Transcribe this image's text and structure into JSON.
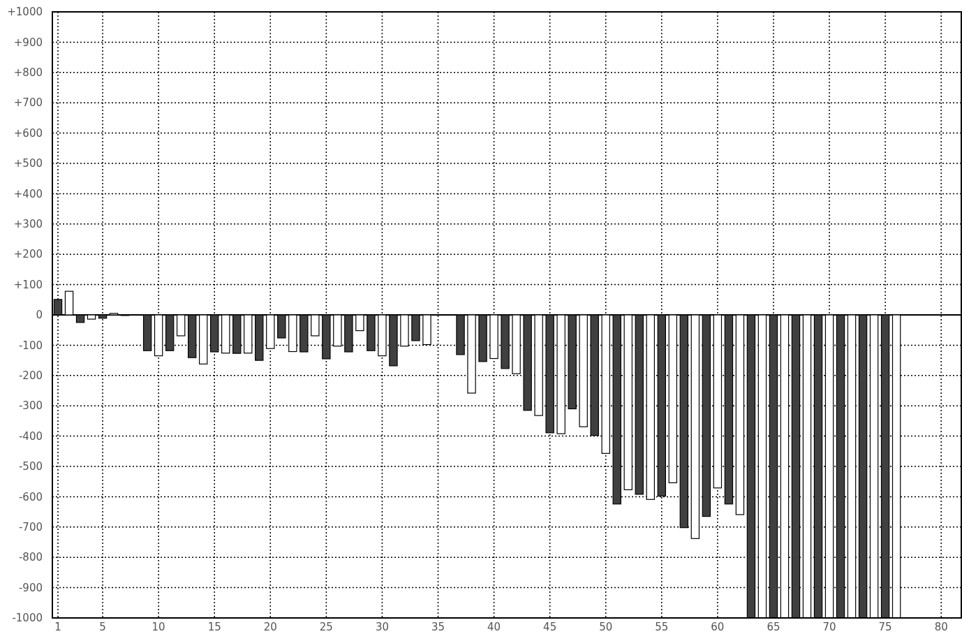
{
  "chart_data": {
    "type": "bar",
    "x": [
      1,
      2,
      3,
      4,
      5,
      6,
      7,
      9,
      10,
      11,
      12,
      13,
      14,
      15,
      16,
      17,
      18,
      19,
      20,
      21,
      22,
      23,
      24,
      25,
      26,
      27,
      28,
      29,
      30,
      31,
      32,
      33,
      34,
      37,
      38,
      39,
      40,
      41,
      42,
      43,
      44,
      45,
      46,
      47,
      48,
      49,
      50,
      51,
      52,
      53,
      54,
      55,
      56,
      57,
      58,
      59,
      60,
      61,
      62,
      63,
      64,
      65,
      66,
      67,
      68,
      69,
      70,
      71,
      72,
      73,
      74,
      75,
      76
    ],
    "values": [
      51,
      78,
      -25,
      -14,
      -11,
      5,
      -2,
      -118,
      -135,
      -118,
      -69,
      -141,
      -162,
      -122,
      -126,
      -127,
      -126,
      -150,
      -111,
      -76,
      -121,
      -122,
      -69,
      -145,
      -103,
      -122,
      -52,
      -118,
      -135,
      -168,
      -103,
      -85,
      -98,
      -131,
      -258,
      -154,
      -144,
      -177,
      -194,
      -315,
      -332,
      -389,
      -392,
      -310,
      -369,
      -398,
      -457,
      -624,
      -577,
      -592,
      -609,
      -598,
      -554,
      -702,
      -738,
      -665,
      -571,
      -624,
      -659,
      -1000,
      -1000,
      -1000,
      -1000,
      -1000,
      -1000,
      -1000,
      -1000,
      -1000,
      -1000,
      -1000,
      -1000,
      -1000,
      -1000
    ],
    "colors": [
      "#404040",
      "#ffffff",
      "#404040",
      "#ffffff",
      "#404040",
      "#ffffff",
      "#404040",
      "#404040",
      "#ffffff",
      "#404040",
      "#ffffff",
      "#404040",
      "#ffffff",
      "#404040",
      "#ffffff",
      "#404040",
      "#ffffff",
      "#404040",
      "#ffffff",
      "#404040",
      "#ffffff",
      "#404040",
      "#ffffff",
      "#404040",
      "#ffffff",
      "#404040",
      "#ffffff",
      "#404040",
      "#ffffff",
      "#404040",
      "#ffffff",
      "#404040",
      "#ffffff",
      "#404040",
      "#ffffff",
      "#404040",
      "#ffffff",
      "#404040",
      "#ffffff",
      "#404040",
      "#ffffff",
      "#404040",
      "#ffffff",
      "#404040",
      "#ffffff",
      "#404040",
      "#ffffff",
      "#404040",
      "#ffffff",
      "#404040",
      "#ffffff",
      "#404040",
      "#ffffff",
      "#404040",
      "#ffffff",
      "#404040",
      "#ffffff",
      "#404040",
      "#ffffff",
      "#404040",
      "#ffffff",
      "#404040",
      "#ffffff",
      "#404040",
      "#ffffff",
      "#404040",
      "#ffffff",
      "#404040",
      "#ffffff",
      "#404040",
      "#ffffff",
      "#404040",
      "#ffffff"
    ],
    "xlim": [
      0.5,
      81.8
    ],
    "xticks": [
      1,
      5,
      10,
      15,
      20,
      25,
      30,
      35,
      40,
      45,
      50,
      55,
      60,
      65,
      70,
      75,
      80
    ],
    "ylim": [
      -1000,
      1000
    ],
    "yticks": [
      {
        "value": 1000,
        "label": "+1000"
      },
      {
        "value": 900,
        "label": "+900"
      },
      {
        "value": 800,
        "label": "+800"
      },
      {
        "value": 700,
        "label": "+700"
      },
      {
        "value": 600,
        "label": "+600"
      },
      {
        "value": 500,
        "label": "+500"
      },
      {
        "value": 400,
        "label": "+400"
      },
      {
        "value": 300,
        "label": "+300"
      },
      {
        "value": 200,
        "label": "+200"
      },
      {
        "value": 100,
        "label": "+100"
      },
      0,
      -100,
      -200,
      -300,
      -400,
      -500,
      -600,
      -700,
      -800,
      -900,
      -1000
    ],
    "grid": true
  }
}
